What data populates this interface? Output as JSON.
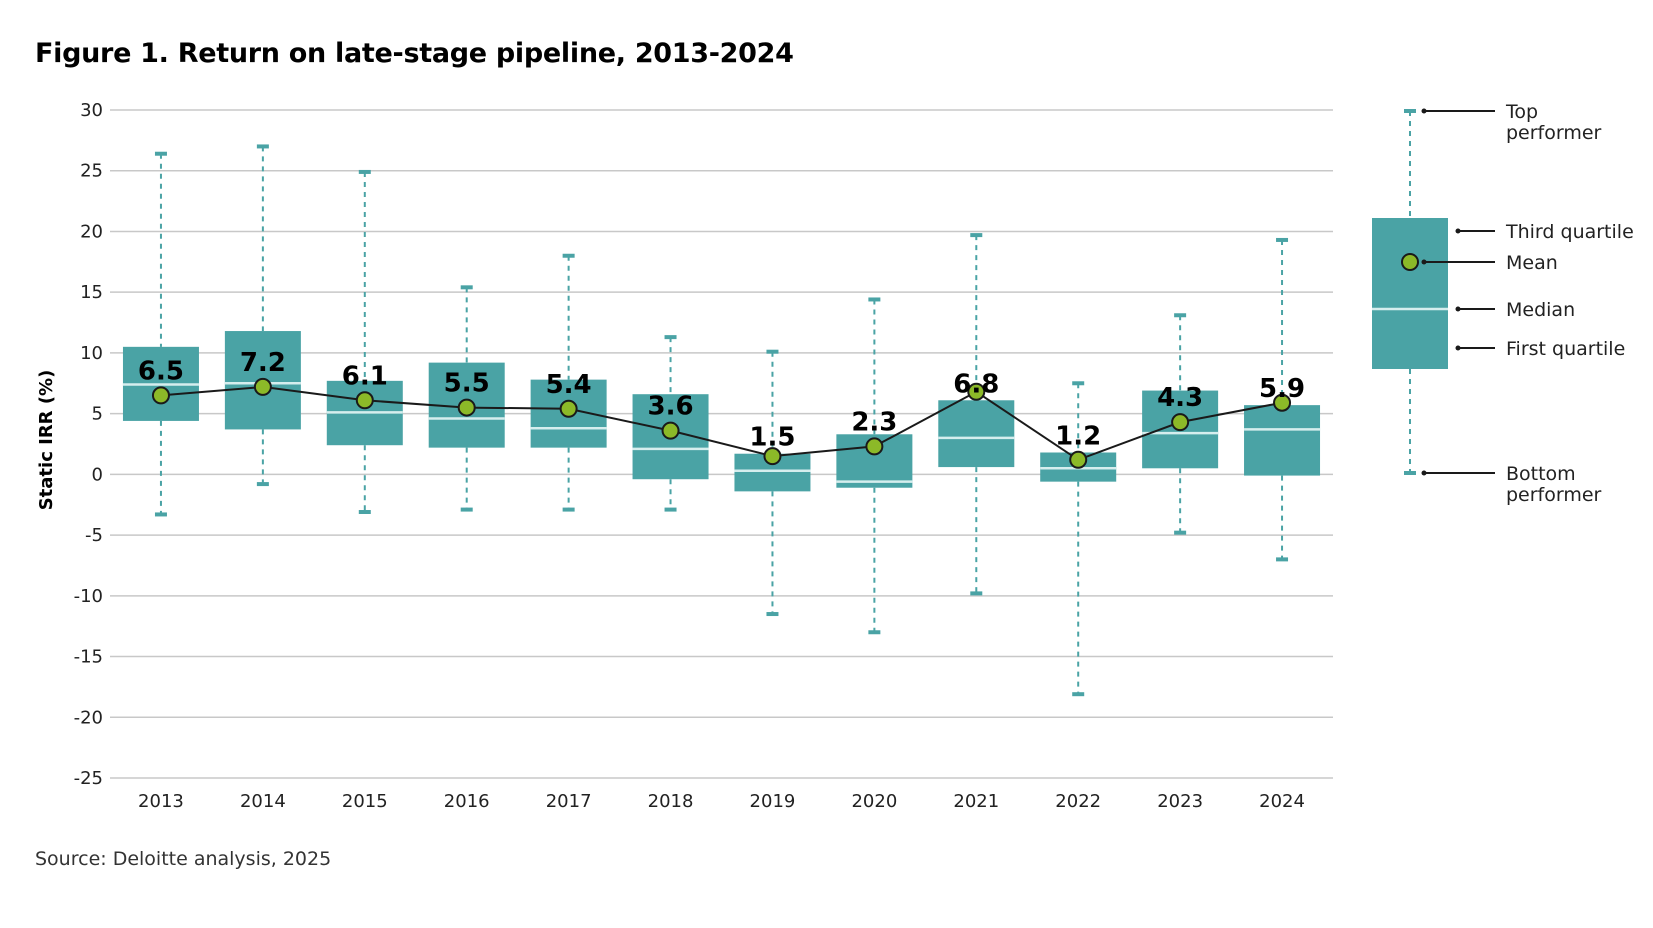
{
  "title": "Figure 1. Return on late-stage pipeline, 2013-2024",
  "source": "Source: Deloitte analysis, 2025",
  "colors": {
    "box": "#4aa3a5",
    "whisker": "#4aa3a5",
    "median": "#d6eeee",
    "mean_fill": "#8cb928",
    "mean_stroke": "#1a1a1a",
    "line": "#1a1a1a",
    "grid": "#c8c8c8"
  },
  "chart_data": {
    "type": "boxplot",
    "ylabel": "Static IRR (%)",
    "ylim": [
      -25,
      30
    ],
    "yticks": [
      30,
      25,
      20,
      15,
      10,
      5,
      0,
      -5,
      -10,
      -15,
      -20,
      -25
    ],
    "grid": true,
    "categories": [
      "2013",
      "2014",
      "2015",
      "2016",
      "2017",
      "2018",
      "2019",
      "2020",
      "2021",
      "2022",
      "2023",
      "2024"
    ],
    "min": [
      -3.3,
      -0.8,
      -3.1,
      -2.9,
      -2.9,
      -2.9,
      -11.5,
      -13.0,
      -9.8,
      -18.1,
      -4.8,
      -7.0
    ],
    "q1": [
      4.4,
      3.7,
      2.4,
      2.2,
      2.2,
      -0.4,
      -1.4,
      -1.1,
      0.6,
      -0.6,
      0.5,
      -0.1
    ],
    "median": [
      7.4,
      7.5,
      5.1,
      4.6,
      3.8,
      2.1,
      0.3,
      -0.6,
      3.0,
      0.5,
      3.4,
      3.7
    ],
    "q3": [
      10.5,
      11.8,
      7.7,
      9.2,
      7.8,
      6.6,
      1.7,
      3.3,
      6.1,
      1.8,
      6.9,
      5.7
    ],
    "max": [
      26.4,
      27.0,
      24.9,
      15.4,
      18.0,
      11.3,
      10.1,
      14.4,
      19.7,
      7.5,
      13.1,
      19.3
    ],
    "mean": [
      6.5,
      7.2,
      6.1,
      5.5,
      5.4,
      3.6,
      1.5,
      2.3,
      6.8,
      1.2,
      4.3,
      5.9
    ],
    "mean_labels": [
      "6.5",
      "7.2",
      "6.1",
      "5.5",
      "5.4",
      "3.6",
      "1.5",
      "2.3",
      "6.8",
      "1.2",
      "4.3",
      "5.9"
    ],
    "legend_position": "right",
    "legend": {
      "top": "Top\nperformer",
      "q3": "Third quartile",
      "mean": "Mean",
      "median": "Median",
      "q1": "First quartile",
      "bottom": "Bottom\nperformer"
    }
  }
}
